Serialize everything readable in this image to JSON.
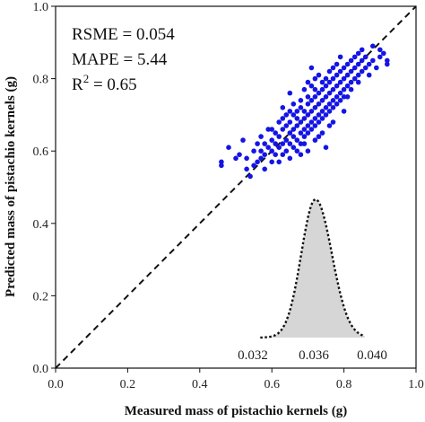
{
  "chart_data": {
    "type": "scatter",
    "xlabel": "Measured mass of pistachio kernels (g)",
    "ylabel": "Predicted mass of pistachio kernels (g)",
    "xlim": [
      0.0,
      1.0
    ],
    "ylim": [
      0.0,
      1.0
    ],
    "x_ticks": [
      "0.0",
      "0.2",
      "0.4",
      "0.6",
      "0.8",
      "1.0"
    ],
    "y_ticks": [
      "0.0",
      "0.2",
      "0.4",
      "0.6",
      "0.8",
      "1.0"
    ],
    "grid": false,
    "reference_line": {
      "style": "dashed",
      "color": "#111111",
      "from": [
        0,
        0
      ],
      "to": [
        1,
        1
      ]
    },
    "metrics": {
      "rsme": "RSME = 0.054",
      "mape": "MAPE = 5.44",
      "r2_prefix": "R",
      "r2_exp": "2",
      "r2_value": " = 0.65"
    },
    "point_color": "#1414e6",
    "points": [
      [
        0.46,
        0.56
      ],
      [
        0.46,
        0.57
      ],
      [
        0.48,
        0.61
      ],
      [
        0.5,
        0.58
      ],
      [
        0.51,
        0.59
      ],
      [
        0.52,
        0.63
      ],
      [
        0.53,
        0.55
      ],
      [
        0.54,
        0.53
      ],
      [
        0.55,
        0.56
      ],
      [
        0.55,
        0.6
      ],
      [
        0.56,
        0.57
      ],
      [
        0.56,
        0.62
      ],
      [
        0.57,
        0.58
      ],
      [
        0.57,
        0.64
      ],
      [
        0.58,
        0.59
      ],
      [
        0.58,
        0.55
      ],
      [
        0.59,
        0.61
      ],
      [
        0.59,
        0.66
      ],
      [
        0.6,
        0.6
      ],
      [
        0.6,
        0.63
      ],
      [
        0.6,
        0.57
      ],
      [
        0.61,
        0.62
      ],
      [
        0.61,
        0.65
      ],
      [
        0.61,
        0.59
      ],
      [
        0.62,
        0.64
      ],
      [
        0.62,
        0.61
      ],
      [
        0.62,
        0.68
      ],
      [
        0.63,
        0.62
      ],
      [
        0.63,
        0.66
      ],
      [
        0.63,
        0.59
      ],
      [
        0.63,
        0.72
      ],
      [
        0.64,
        0.63
      ],
      [
        0.64,
        0.67
      ],
      [
        0.64,
        0.6
      ],
      [
        0.64,
        0.7
      ],
      [
        0.65,
        0.65
      ],
      [
        0.65,
        0.62
      ],
      [
        0.65,
        0.68
      ],
      [
        0.65,
        0.58
      ],
      [
        0.65,
        0.76
      ],
      [
        0.66,
        0.66
      ],
      [
        0.66,
        0.64
      ],
      [
        0.66,
        0.7
      ],
      [
        0.66,
        0.61
      ],
      [
        0.67,
        0.67
      ],
      [
        0.67,
        0.63
      ],
      [
        0.67,
        0.71
      ],
      [
        0.67,
        0.69
      ],
      [
        0.67,
        0.6
      ],
      [
        0.68,
        0.68
      ],
      [
        0.68,
        0.65
      ],
      [
        0.68,
        0.72
      ],
      [
        0.68,
        0.62
      ],
      [
        0.68,
        0.74
      ],
      [
        0.69,
        0.69
      ],
      [
        0.69,
        0.66
      ],
      [
        0.69,
        0.71
      ],
      [
        0.69,
        0.64
      ],
      [
        0.69,
        0.77
      ],
      [
        0.7,
        0.7
      ],
      [
        0.7,
        0.67
      ],
      [
        0.7,
        0.73
      ],
      [
        0.7,
        0.65
      ],
      [
        0.7,
        0.75
      ],
      [
        0.7,
        0.6
      ],
      [
        0.71,
        0.71
      ],
      [
        0.71,
        0.68
      ],
      [
        0.71,
        0.74
      ],
      [
        0.71,
        0.66
      ],
      [
        0.71,
        0.78
      ],
      [
        0.72,
        0.72
      ],
      [
        0.72,
        0.69
      ],
      [
        0.72,
        0.75
      ],
      [
        0.72,
        0.67
      ],
      [
        0.72,
        0.8
      ],
      [
        0.72,
        0.63
      ],
      [
        0.73,
        0.73
      ],
      [
        0.73,
        0.7
      ],
      [
        0.73,
        0.76
      ],
      [
        0.73,
        0.68
      ],
      [
        0.73,
        0.81
      ],
      [
        0.74,
        0.74
      ],
      [
        0.74,
        0.71
      ],
      [
        0.74,
        0.77
      ],
      [
        0.74,
        0.69
      ],
      [
        0.74,
        0.65
      ],
      [
        0.75,
        0.75
      ],
      [
        0.75,
        0.72
      ],
      [
        0.75,
        0.78
      ],
      [
        0.75,
        0.7
      ],
      [
        0.75,
        0.8
      ],
      [
        0.75,
        0.61
      ],
      [
        0.76,
        0.76
      ],
      [
        0.76,
        0.73
      ],
      [
        0.76,
        0.79
      ],
      [
        0.76,
        0.71
      ],
      [
        0.76,
        0.82
      ],
      [
        0.77,
        0.77
      ],
      [
        0.77,
        0.74
      ],
      [
        0.77,
        0.8
      ],
      [
        0.77,
        0.72
      ],
      [
        0.77,
        0.68
      ],
      [
        0.78,
        0.78
      ],
      [
        0.78,
        0.75
      ],
      [
        0.78,
        0.81
      ],
      [
        0.78,
        0.73
      ],
      [
        0.78,
        0.84
      ],
      [
        0.79,
        0.79
      ],
      [
        0.79,
        0.76
      ],
      [
        0.79,
        0.82
      ],
      [
        0.79,
        0.74
      ],
      [
        0.8,
        0.8
      ],
      [
        0.8,
        0.77
      ],
      [
        0.8,
        0.83
      ],
      [
        0.8,
        0.75
      ],
      [
        0.8,
        0.71
      ],
      [
        0.81,
        0.81
      ],
      [
        0.81,
        0.78
      ],
      [
        0.81,
        0.84
      ],
      [
        0.82,
        0.82
      ],
      [
        0.82,
        0.79
      ],
      [
        0.82,
        0.85
      ],
      [
        0.82,
        0.77
      ],
      [
        0.83,
        0.83
      ],
      [
        0.83,
        0.8
      ],
      [
        0.83,
        0.86
      ],
      [
        0.84,
        0.84
      ],
      [
        0.84,
        0.81
      ],
      [
        0.84,
        0.87
      ],
      [
        0.85,
        0.85
      ],
      [
        0.85,
        0.82
      ],
      [
        0.85,
        0.88
      ],
      [
        0.86,
        0.83
      ],
      [
        0.86,
        0.86
      ],
      [
        0.87,
        0.84
      ],
      [
        0.87,
        0.81
      ],
      [
        0.88,
        0.85
      ],
      [
        0.88,
        0.89
      ],
      [
        0.89,
        0.83
      ],
      [
        0.9,
        0.86
      ],
      [
        0.9,
        0.88
      ],
      [
        0.91,
        0.87
      ],
      [
        0.92,
        0.85
      ],
      [
        0.92,
        0.84
      ],
      [
        0.63,
        0.69
      ],
      [
        0.66,
        0.73
      ],
      [
        0.69,
        0.62
      ],
      [
        0.72,
        0.77
      ],
      [
        0.74,
        0.79
      ],
      [
        0.77,
        0.83
      ],
      [
        0.79,
        0.86
      ],
      [
        0.6,
        0.66
      ],
      [
        0.58,
        0.62
      ],
      [
        0.7,
        0.79
      ],
      [
        0.76,
        0.67
      ],
      [
        0.68,
        0.59
      ],
      [
        0.65,
        0.71
      ],
      [
        0.73,
        0.64
      ],
      [
        0.81,
        0.75
      ],
      [
        0.84,
        0.79
      ],
      [
        0.71,
        0.83
      ],
      [
        0.62,
        0.57
      ],
      [
        0.57,
        0.6
      ],
      [
        0.53,
        0.58
      ]
    ],
    "inset_histogram": {
      "fill": "#d6d6d6",
      "outline": "dotted",
      "tick_labels": [
        "0.032",
        "0.036",
        "0.040"
      ],
      "curve_peak": 0.0362,
      "range": [
        0.0325,
        0.0395
      ]
    }
  }
}
